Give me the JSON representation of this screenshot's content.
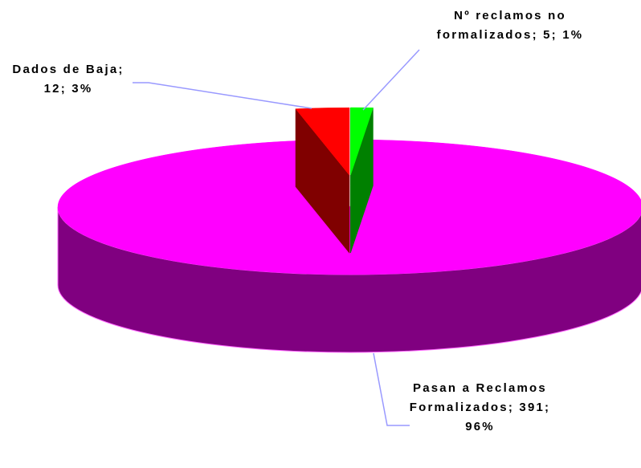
{
  "chart_data": {
    "type": "pie3d",
    "categories": [
      "Nº reclamos no formalizados",
      "Pasan a Reclamos Formalizados",
      "Dados de Baja"
    ],
    "values": [
      5,
      391,
      12
    ],
    "value_labels": [
      "Nº reclamos no formalizados; 5; 1%",
      "Pasan a Reclamos Formalizados; 391; 96%",
      "Dados de Baja; 12; 3%"
    ],
    "colors": [
      "#00ff00",
      "#ff00ff",
      "#ff0000"
    ],
    "side_colors": [
      "#008000",
      "#800080",
      "#800000"
    ],
    "exploded": [
      true,
      false,
      true
    ]
  }
}
